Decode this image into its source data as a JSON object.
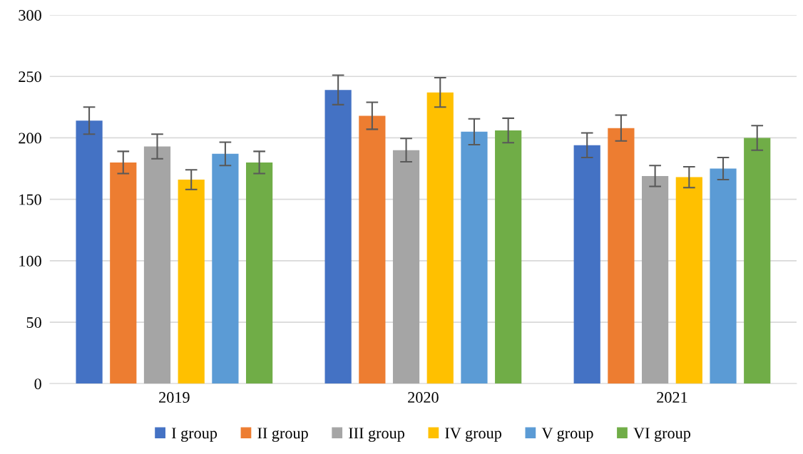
{
  "chart_data": {
    "type": "bar",
    "categories": [
      "2019",
      "2020",
      "2021"
    ],
    "series": [
      {
        "name": "I group",
        "color": "#4472c4",
        "values": [
          214,
          239,
          194
        ],
        "errors": [
          11,
          12,
          10
        ]
      },
      {
        "name": "II group",
        "color": "#ed7d31",
        "values": [
          180,
          218,
          208
        ],
        "errors": [
          9,
          11,
          10.5
        ]
      },
      {
        "name": "III group",
        "color": "#a5a5a5",
        "values": [
          193,
          190,
          169
        ],
        "errors": [
          10,
          9.5,
          8.5
        ]
      },
      {
        "name": "IV group",
        "color": "#ffc000",
        "values": [
          166,
          237,
          168
        ],
        "errors": [
          8,
          12,
          8.5
        ]
      },
      {
        "name": "V group",
        "color": "#5b9bd5",
        "values": [
          187,
          205,
          175
        ],
        "errors": [
          9.5,
          10.5,
          9
        ]
      },
      {
        "name": "VI group",
        "color": "#70ad47",
        "values": [
          180,
          206,
          200
        ],
        "errors": [
          9,
          10,
          10
        ]
      }
    ],
    "ylim": [
      0,
      300
    ],
    "yticks": [
      0,
      50,
      100,
      150,
      200,
      250,
      300
    ],
    "grid": "y",
    "legend": "bottom"
  }
}
